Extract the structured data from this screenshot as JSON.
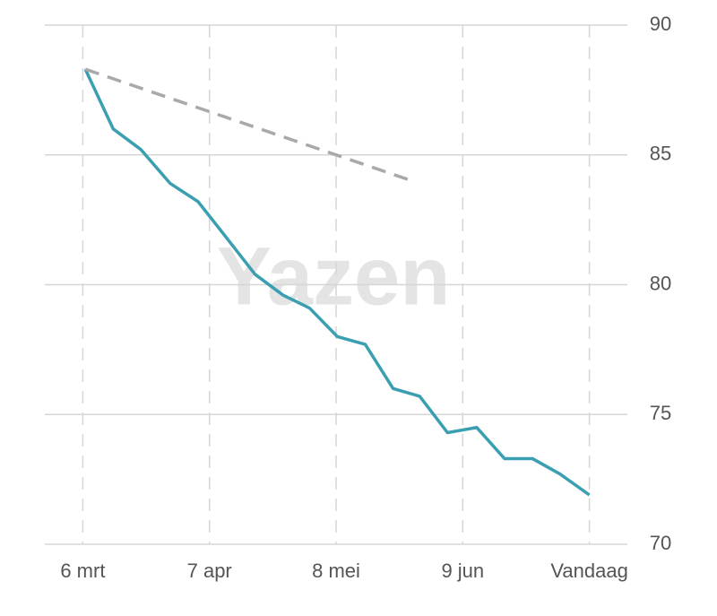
{
  "chart_data": {
    "type": "line",
    "watermark": "Yazen",
    "xlim": [
      -0.3,
      4.3
    ],
    "xticks": [
      {
        "value": 0,
        "label": "6 mrt"
      },
      {
        "value": 1,
        "label": "7 apr"
      },
      {
        "value": 2,
        "label": "8 mei"
      },
      {
        "value": 3,
        "label": "9 jun"
      },
      {
        "value": 4,
        "label": "Vandaag"
      }
    ],
    "ylim": [
      70,
      90
    ],
    "yticks": [
      70,
      75,
      80,
      85,
      90
    ],
    "grid": true,
    "y_axis_side": "right",
    "series": [
      {
        "color": "#3a9fb1",
        "line_style": "solid",
        "x": [
          0.02,
          0.24,
          0.46,
          0.69,
          0.91,
          1.12,
          1.36,
          1.58,
          1.79,
          2.01,
          2.23,
          2.45,
          2.66,
          2.88,
          3.11,
          3.33,
          3.55,
          3.77,
          4.0
        ],
        "values": [
          88.3,
          86.0,
          85.2,
          83.9,
          83.2,
          81.9,
          80.4,
          79.6,
          79.1,
          78.0,
          77.7,
          76.0,
          75.7,
          74.3,
          74.5,
          73.3,
          73.3,
          72.7,
          71.9
        ]
      },
      {
        "color": "#a9a9a9",
        "line_style": "dashed",
        "x": [
          0.02,
          2.6
        ],
        "values": [
          88.3,
          84.0
        ]
      }
    ]
  }
}
